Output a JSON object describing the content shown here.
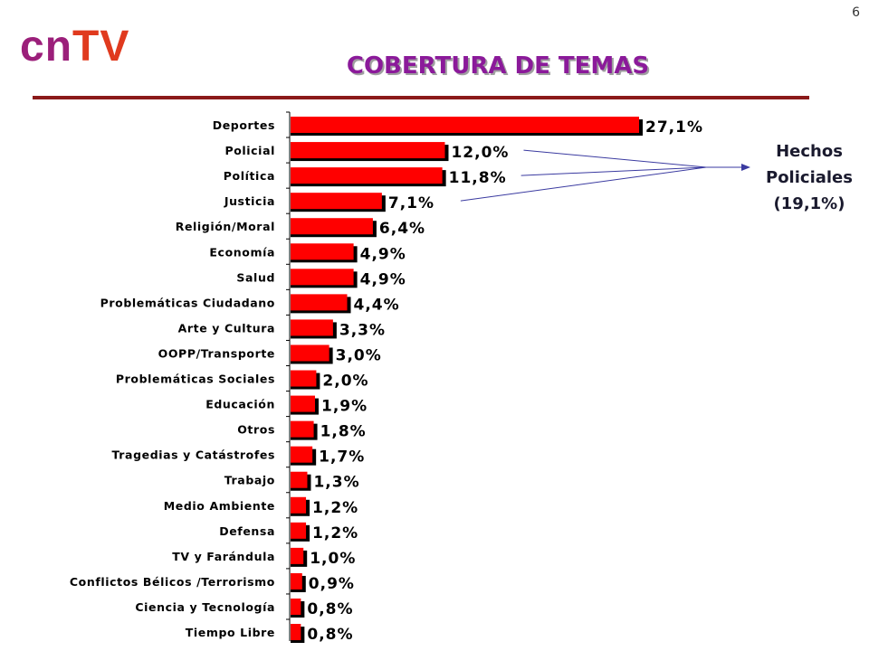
{
  "page_number": "6",
  "logo": {
    "cn": "cn",
    "tv": "TV"
  },
  "title": "COBERTURA DE TEMAS",
  "annotation": {
    "line1": "Hechos",
    "line2": "Policiales",
    "line3": "(19,1%)"
  },
  "colors": {
    "bar": "#ff0000",
    "bar_shadow": "#000000",
    "title": "#8b1a9a",
    "rule": "#8b1a1a",
    "arrow": "#3a3aa0"
  },
  "chart_data": {
    "type": "bar",
    "orientation": "horizontal",
    "title": "COBERTURA DE TEMAS",
    "xlabel": "",
    "ylabel": "",
    "xlim": [
      0,
      30
    ],
    "grid": false,
    "categories": [
      "Deportes",
      "Policial",
      "Política",
      "Justicia",
      "Religión/Moral",
      "Economía",
      "Salud",
      "Problemáticas Ciudadano",
      "Arte y Cultura",
      "OOPP/Transporte",
      "Problemáticas Sociales",
      "Educación",
      "Otros",
      "Tragedias y Catástrofes",
      "Trabajo",
      "Medio Ambiente",
      "Defensa",
      "TV y Farándula",
      "Conflictos Bélicos /Terrorismo",
      "Ciencia y Tecnología",
      "Tiempo Libre"
    ],
    "values": [
      27.1,
      12.0,
      11.8,
      7.1,
      6.4,
      4.9,
      4.9,
      4.4,
      3.3,
      3.0,
      2.0,
      1.9,
      1.8,
      1.7,
      1.3,
      1.2,
      1.2,
      1.0,
      0.9,
      0.8,
      0.8
    ],
    "data_labels": [
      "27,1%",
      "12,0%",
      "11,8%",
      "7,1%",
      "6,4%",
      "4,9%",
      "4,9%",
      "4,4%",
      "3,3%",
      "3,0%",
      "2,0%",
      "1,9%",
      "1,8%",
      "1,7%",
      "1,3%",
      "1,2%",
      "1,2%",
      "1,0%",
      "0,9%",
      "0,8%",
      "0,8%"
    ]
  }
}
